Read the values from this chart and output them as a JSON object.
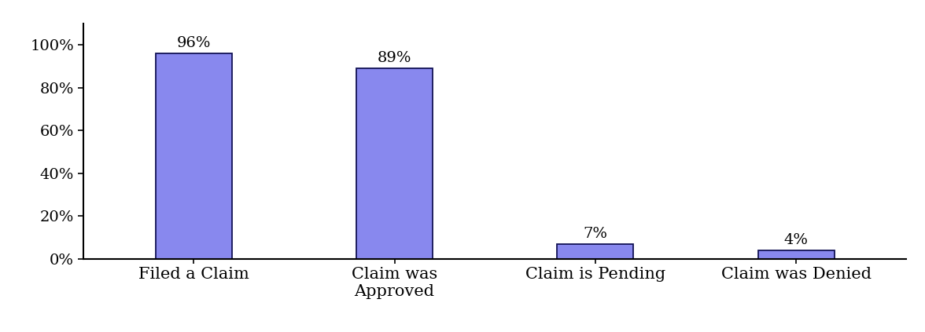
{
  "categories": [
    "Filed a Claim",
    "Claim was\nApproved",
    "Claim is Pending",
    "Claim was Denied"
  ],
  "values": [
    96,
    89,
    7,
    4
  ],
  "bar_color": "#8888EE",
  "bar_edgecolor": "#111155",
  "bar_width": 0.38,
  "yticks": [
    0,
    20,
    40,
    60,
    80,
    100
  ],
  "ytick_labels": [
    "0%",
    "20%",
    "40%",
    "60%",
    "80%",
    "100%"
  ],
  "ylim": [
    0,
    110
  ],
  "label_fontsize": 15,
  "tick_fontsize": 14,
  "annotation_fontsize": 14,
  "background_color": "#ffffff",
  "spine_color": "#000000",
  "xlim_left": -0.55,
  "xlim_right": 3.55
}
